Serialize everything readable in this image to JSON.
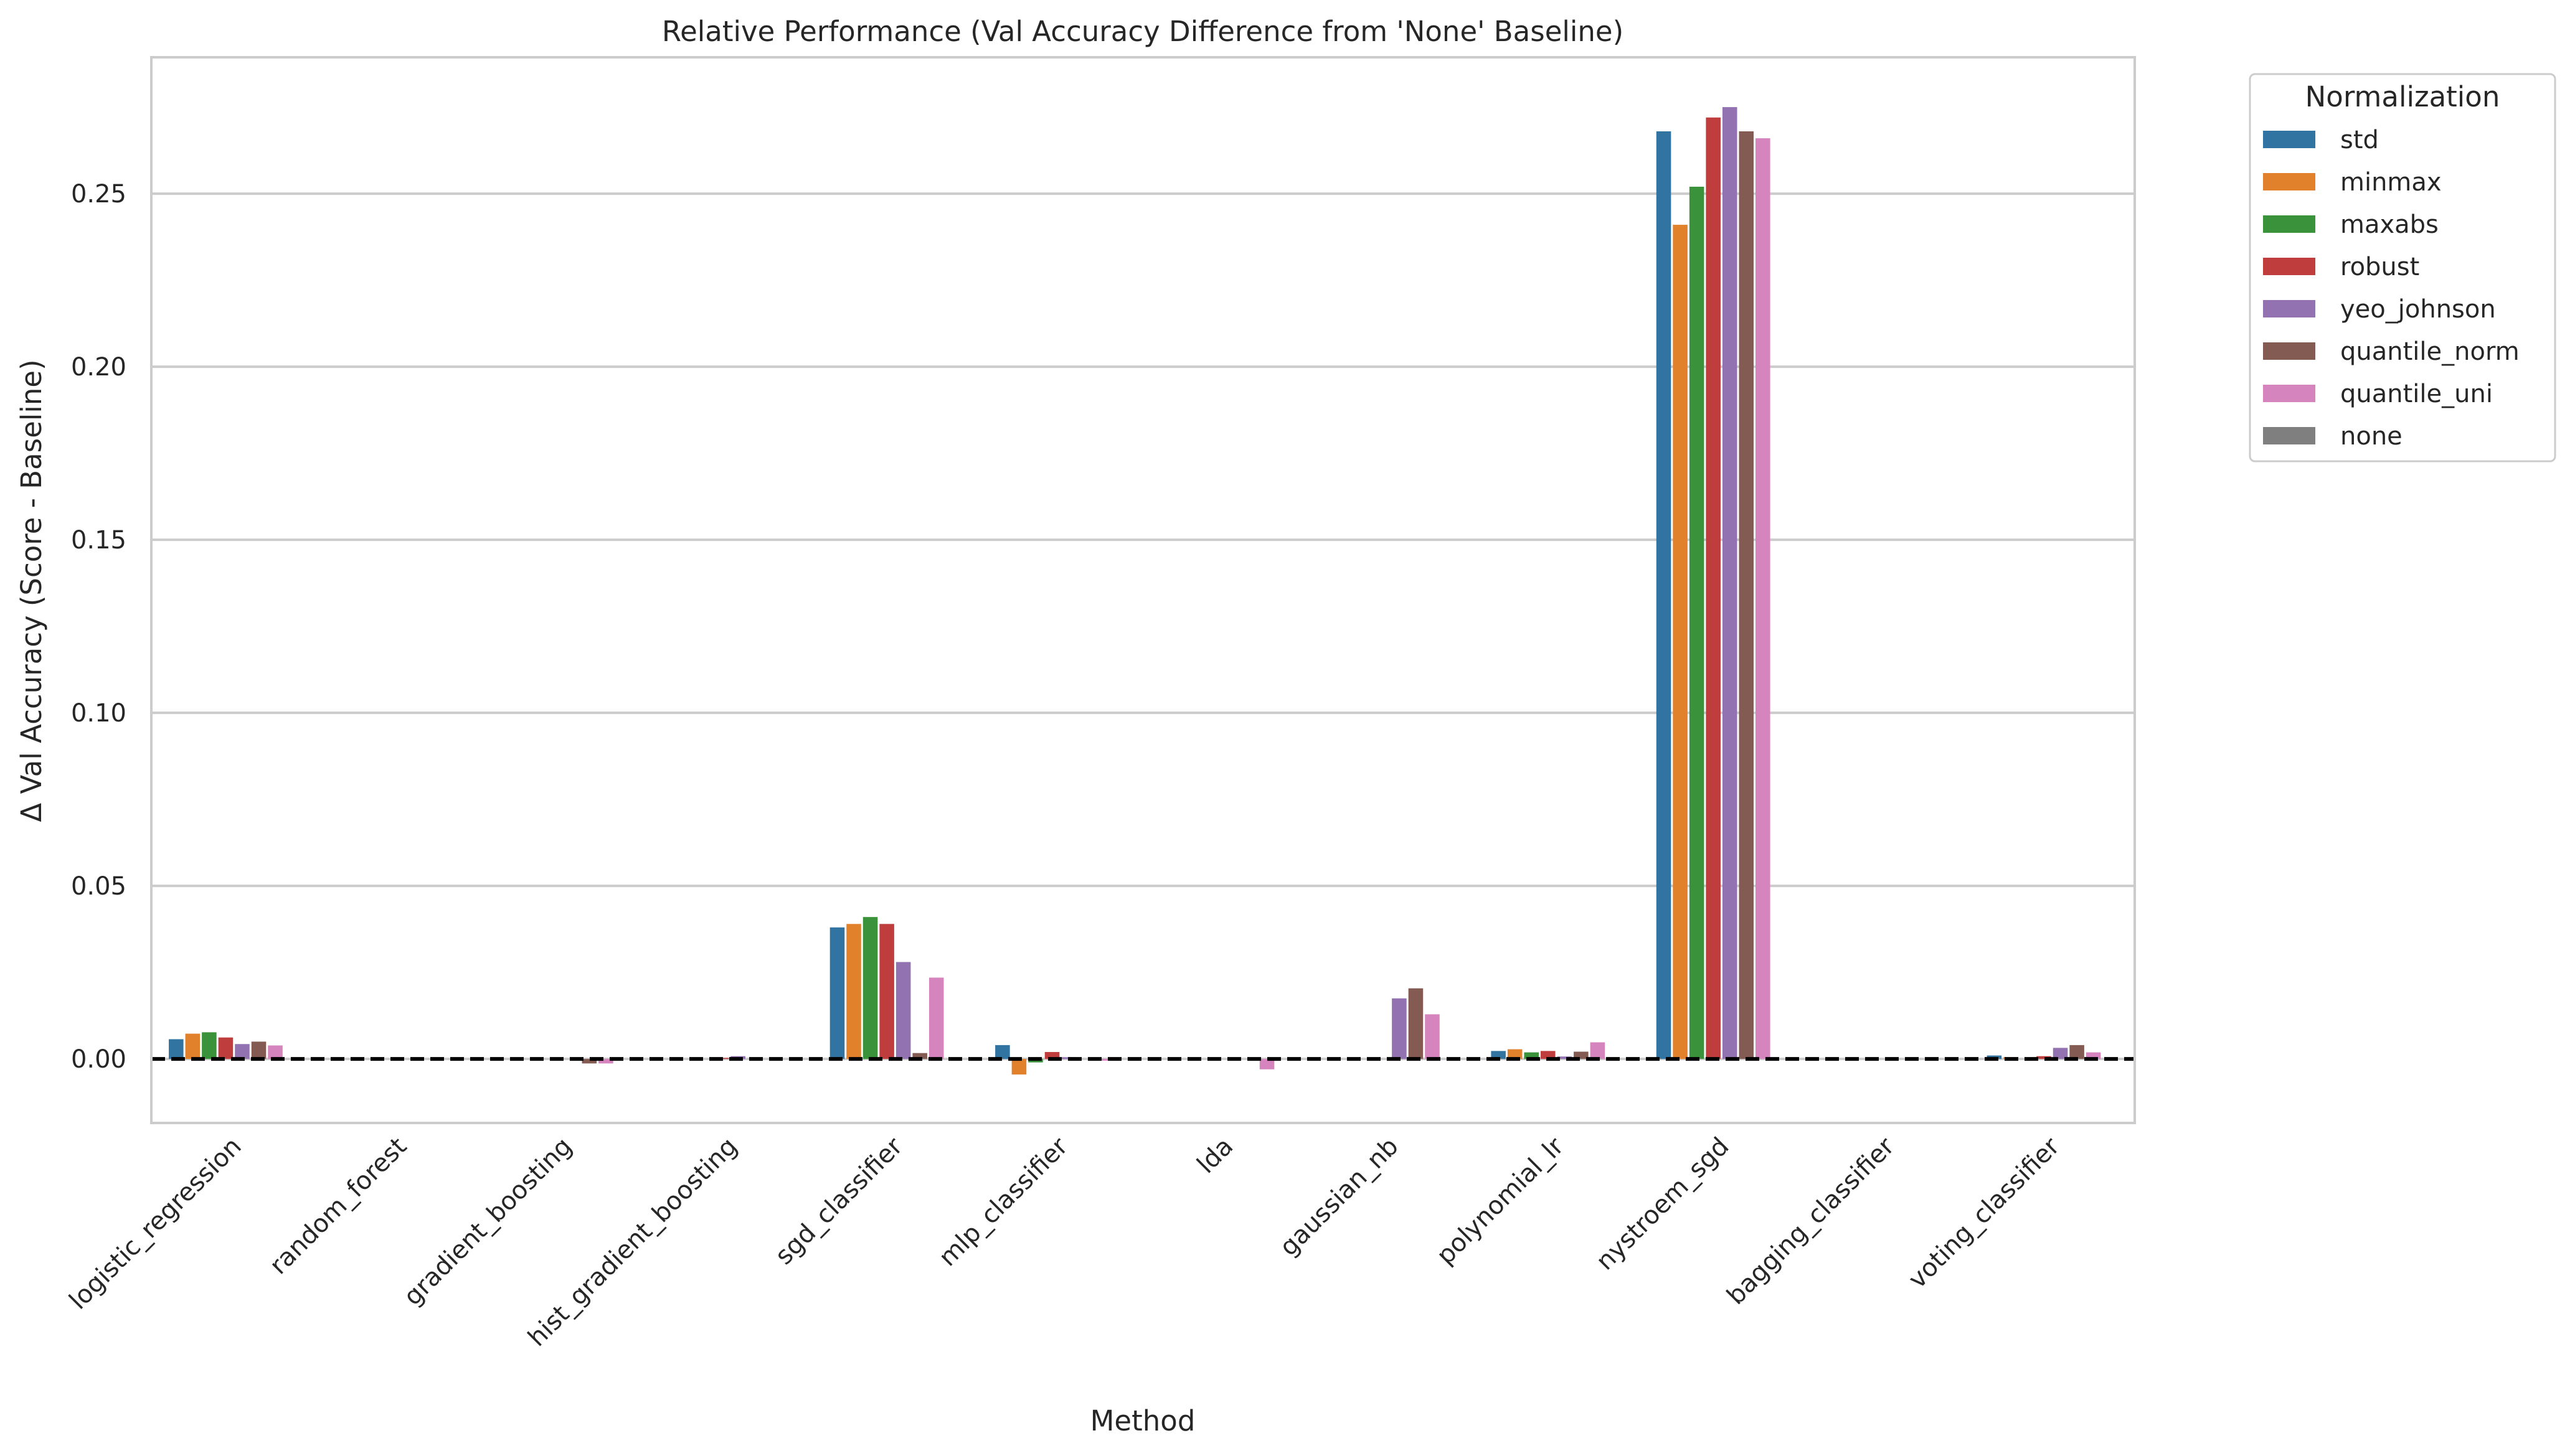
{
  "chart_data": {
    "type": "bar",
    "title": "Relative Performance (Val Accuracy Difference from 'None' Baseline)",
    "xlabel": "Method",
    "ylabel": "Δ Val Accuracy (Score - Baseline)",
    "ylim": [
      -0.0185,
      0.2894
    ],
    "yticks": [
      0.0,
      0.05,
      0.1,
      0.15,
      0.2,
      0.25
    ],
    "ytick_labels": [
      "0.00",
      "0.05",
      "0.10",
      "0.15",
      "0.20",
      "0.25"
    ],
    "grid": "horizontal",
    "baseline_line": {
      "y": 0,
      "style": "dashed",
      "color": "#000000"
    },
    "legend": {
      "title": "Normalization",
      "placement": "outside-top-right"
    },
    "categories": [
      "logistic_regression",
      "random_forest",
      "gradient_boosting",
      "hist_gradient_boosting",
      "sgd_classifier",
      "mlp_classifier",
      "lda",
      "gaussian_nb",
      "polynomial_lr",
      "nystroem_sgd",
      "bagging_classifier",
      "voting_classifier"
    ],
    "series": [
      {
        "name": "std",
        "color": "#3274a1",
        "values": [
          0.0057,
          0,
          0,
          0,
          0.038,
          0.004,
          0,
          0,
          0.0023,
          0.268,
          0,
          0.001
        ]
      },
      {
        "name": "minmax",
        "color": "#e1812c",
        "values": [
          0.0073,
          0,
          0,
          0,
          0.039,
          -0.0045,
          0,
          0,
          0.0028,
          0.241,
          0,
          0.0005
        ]
      },
      {
        "name": "maxabs",
        "color": "#3a923a",
        "values": [
          0.0077,
          0,
          0,
          0,
          0.041,
          -0.001,
          0,
          0,
          0.0019,
          0.252,
          0,
          0
        ]
      },
      {
        "name": "robust",
        "color": "#c03d3e",
        "values": [
          0.0062,
          0,
          0,
          0.0003,
          0.039,
          0.002,
          0,
          0,
          0.0023,
          0.272,
          0,
          0.0008
        ]
      },
      {
        "name": "yeo_johnson",
        "color": "#9372b2",
        "values": [
          0.0043,
          0,
          0,
          0.0008,
          0.028,
          0.0005,
          0,
          0.0175,
          0.0007,
          0.275,
          0,
          0.0032
        ]
      },
      {
        "name": "quantile_norm",
        "color": "#845b53",
        "values": [
          0.005,
          0,
          -0.0013,
          0,
          0.0017,
          0,
          0,
          0.0204,
          0.0021,
          0.268,
          0,
          0.004
        ]
      },
      {
        "name": "quantile_uni",
        "color": "#d684bd",
        "values": [
          0.0039,
          0,
          -0.0013,
          0,
          0.0235,
          -0.0005,
          -0.003,
          0.0129,
          0.0048,
          0.266,
          0,
          0.0019
        ]
      },
      {
        "name": "none",
        "color": "#7f7f7f",
        "values": [
          0,
          0,
          0,
          0,
          0,
          0,
          0,
          0,
          0,
          0,
          0,
          0
        ]
      }
    ]
  }
}
